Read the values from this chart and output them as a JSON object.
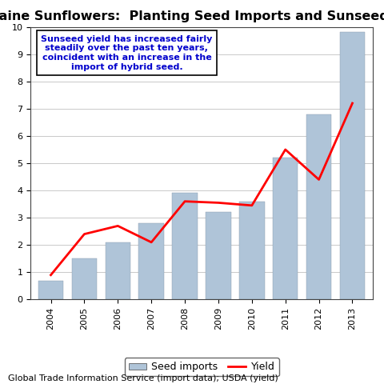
{
  "title": "Ukraine Sunflowers:  Planting Seed Imports and Sunseed Yield",
  "years": [
    2004,
    2005,
    2006,
    2007,
    2008,
    2009,
    2010,
    2011,
    2012,
    2013
  ],
  "seed_imports": [
    0.7,
    1.5,
    2.1,
    2.8,
    3.9,
    3.2,
    3.6,
    5.2,
    6.8,
    9.8
  ],
  "yield": [
    0.9,
    2.4,
    2.7,
    2.1,
    3.6,
    3.55,
    3.45,
    5.5,
    4.4,
    7.2
  ],
  "bar_color": "#afc4d8",
  "line_color": "#ff0000",
  "annotation_text": "Sunseed yield has increased fairly\nsteadily over the past ten years,\ncoincident with an increase in the\nimport of hybrid seed.",
  "annotation_color": "#0000cc",
  "source_text": "Global Trade Information Service (import data); USDA (yield)",
  "ylim": [
    0,
    10
  ],
  "ytick_values": [
    0,
    1,
    2,
    3,
    4,
    5,
    6,
    7,
    8,
    9,
    10
  ],
  "background_color": "#ffffff",
  "plot_bg_color": "#ffffff",
  "grid_color": "#c0c0c0",
  "title_fontsize": 11.5,
  "tick_fontsize": 8,
  "source_fontsize": 8,
  "legend_fontsize": 9
}
